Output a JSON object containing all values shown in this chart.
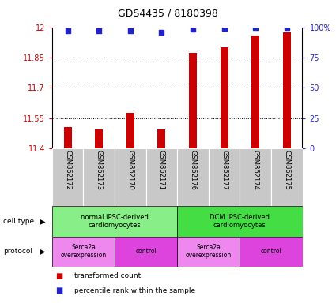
{
  "title": "GDS4435 / 8180398",
  "samples": [
    "GSM862172",
    "GSM862173",
    "GSM862170",
    "GSM862171",
    "GSM862176",
    "GSM862177",
    "GSM862174",
    "GSM862175"
  ],
  "bar_values": [
    11.505,
    11.495,
    11.575,
    11.495,
    11.875,
    11.9,
    11.96,
    11.975
  ],
  "percentile_values": [
    97,
    97,
    97,
    96,
    98.5,
    99,
    99.5,
    100
  ],
  "ylim_left": [
    11.4,
    12.0
  ],
  "ylim_right": [
    0,
    100
  ],
  "yticks_left": [
    11.4,
    11.55,
    11.7,
    11.85,
    12.0
  ],
  "ytick_labels_left": [
    "11.4",
    "11.55",
    "11.7",
    "11.85",
    "12"
  ],
  "yticks_right": [
    0,
    25,
    50,
    75,
    100
  ],
  "ytick_labels_right": [
    "0",
    "25",
    "50",
    "75",
    "100%"
  ],
  "bar_color": "#CC0000",
  "dot_color": "#2222CC",
  "bar_bottom": 11.4,
  "bar_width": 0.25,
  "cell_type_groups": [
    {
      "label": "normal iPSC-derived\ncardiomyocytes",
      "start": 0,
      "end": 4,
      "color": "#88EE88"
    },
    {
      "label": "DCM iPSC-derived\ncardiomyocytes",
      "start": 4,
      "end": 8,
      "color": "#44DD44"
    }
  ],
  "protocol_groups": [
    {
      "label": "Serca2a\noverexpression",
      "start": 0,
      "end": 2,
      "color": "#EE88EE"
    },
    {
      "label": "control",
      "start": 2,
      "end": 4,
      "color": "#DD44DD"
    },
    {
      "label": "Serca2a\noverexpression",
      "start": 4,
      "end": 6,
      "color": "#EE88EE"
    },
    {
      "label": "control",
      "start": 6,
      "end": 8,
      "color": "#DD44DD"
    }
  ],
  "legend_bar_label": "transformed count",
  "legend_dot_label": "percentile rank within the sample",
  "cell_type_label": "cell type",
  "protocol_label": "protocol",
  "tick_color_left": "#CC0000",
  "tick_color_right": "#2222CC",
  "grid_color": "#000000",
  "background_color": "#FFFFFF",
  "plot_bg_color": "#FFFFFF",
  "sample_bg_color": "#C8C8C8"
}
